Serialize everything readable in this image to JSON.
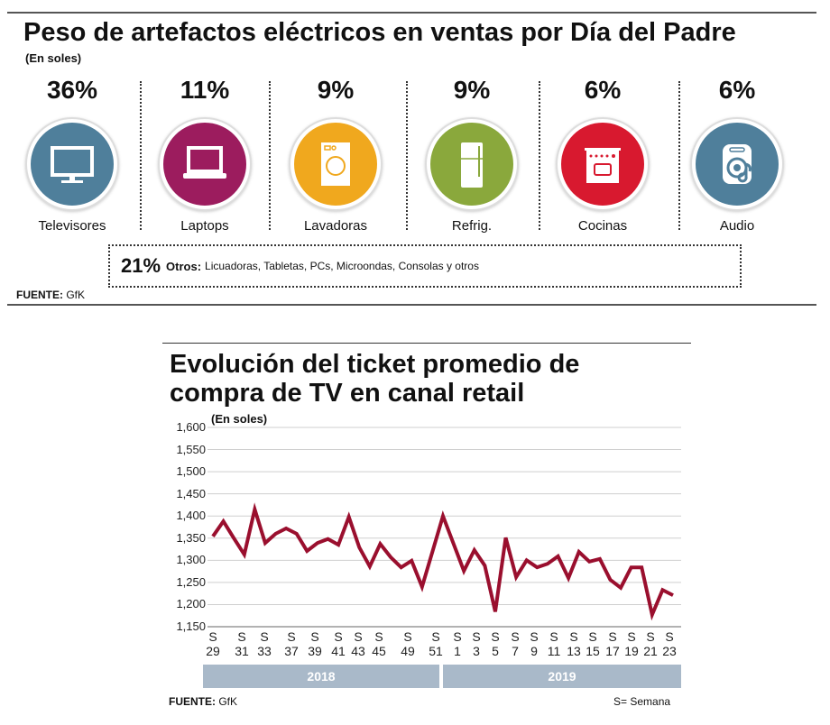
{
  "top": {
    "title": "Peso de artefactos eléctricos en ventas por Día del Padre",
    "subtitle": "(En soles)",
    "items": [
      {
        "pct": "36%",
        "label": "Televisores",
        "icon": "tv-icon",
        "color": "#4f7f9b"
      },
      {
        "pct": "11%",
        "label": "Laptops",
        "icon": "laptop-icon",
        "color": "#9c1c5e"
      },
      {
        "pct": "9%",
        "label": "Lavadoras",
        "icon": "washing-machine-icon",
        "color": "#f0a81e"
      },
      {
        "pct": "9%",
        "label": "Refrig.",
        "icon": "refrigerator-icon",
        "color": "#8aa83c"
      },
      {
        "pct": "6%",
        "label": "Cocinas",
        "icon": "stove-icon",
        "color": "#d8192f"
      },
      {
        "pct": "6%",
        "label": "Audio",
        "icon": "audio-icon",
        "color": "#4f7f9b"
      }
    ],
    "others": {
      "pct": "21%",
      "label": "Otros:",
      "text": "Licuadoras, Tabletas, PCs, Microondas, Consolas y otros"
    },
    "source_label": "FUENTE:",
    "source": "GfK"
  },
  "chart_data": {
    "type": "line",
    "title": "Evolución del ticket promedio de compra de TV en canal retail",
    "subtitle": "(En soles)",
    "ylim": [
      1150,
      1600
    ],
    "yticks": [
      "1,600",
      "1,550",
      "1,500",
      "1,450",
      "1,400",
      "1,350",
      "1,300",
      "1,250",
      "1,200",
      "1,150"
    ],
    "grid": true,
    "xtick_labels": [
      "29",
      "31",
      "33",
      "37",
      "39",
      "41",
      "43",
      "45",
      "49",
      "51",
      "1",
      "3",
      "5",
      "7",
      "9",
      "11",
      "13",
      "15",
      "17",
      "19",
      "21",
      "23"
    ],
    "xtick_prefix": "S",
    "groups": [
      "2018",
      "2019"
    ],
    "color": "#9a0f2e",
    "values": [
      1354,
      1388,
      1350,
      1313,
      1415,
      1339,
      1360,
      1372,
      1360,
      1321,
      1339,
      1348,
      1335,
      1398,
      1329,
      1286,
      1337,
      1307,
      1284,
      1299,
      1240,
      1320,
      1400,
      1338,
      1276,
      1323,
      1288,
      1184,
      1351,
      1262,
      1300,
      1284,
      1292,
      1309,
      1260,
      1319,
      1297,
      1303,
      1256,
      1238,
      1284,
      1284,
      1177,
      1233,
      1221
    ],
    "source_label": "FUENTE:",
    "source": "GfK",
    "note": "S= Semana"
  }
}
